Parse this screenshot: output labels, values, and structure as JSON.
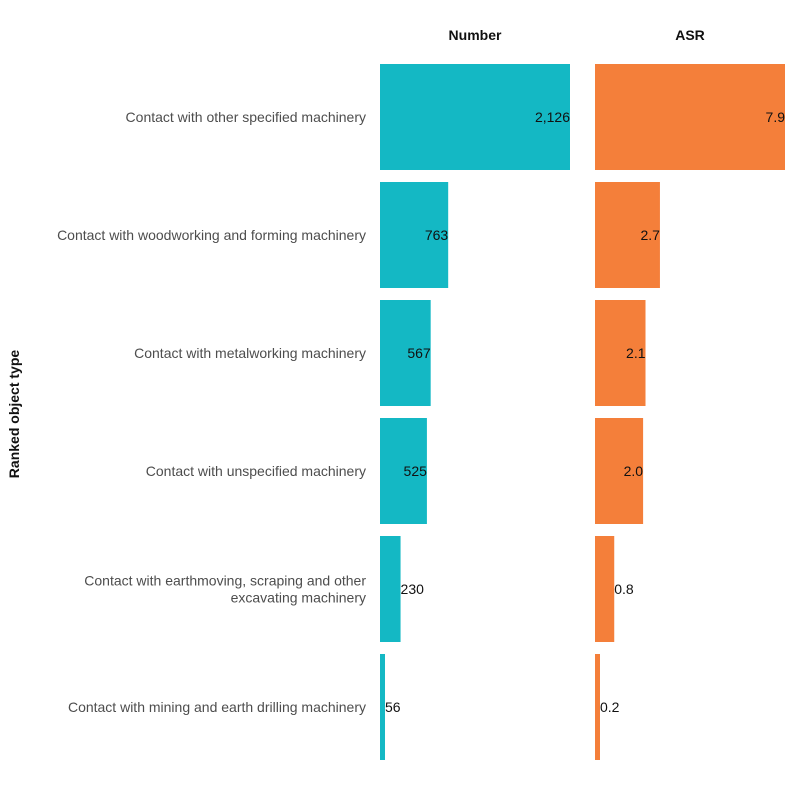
{
  "chart_data": {
    "type": "bar",
    "orientation": "horizontal",
    "ylabel": "Ranked object type",
    "categories": [
      "Contact with other specified machinery",
      "Contact with woodworking and forming machinery",
      "Contact with metalworking machinery",
      "Contact with unspecified machinery",
      [
        "Contact with earthmoving, scraping and other",
        "excavating machinery"
      ],
      "Contact with mining and earth drilling machinery"
    ],
    "panels": [
      {
        "title": "Number",
        "color": "#14b8c4",
        "values": [
          2126,
          763,
          567,
          525,
          230,
          56
        ],
        "value_labels": [
          "2,126",
          "763",
          "567",
          "525",
          "230",
          "56"
        ],
        "xlim": [
          0,
          2126
        ]
      },
      {
        "title": "ASR",
        "color": "#f47f3a",
        "values": [
          7.9,
          2.7,
          2.1,
          2.0,
          0.8,
          0.2
        ],
        "value_labels": [
          "7.9",
          "2.7",
          "2.1",
          "2.0",
          "0.8",
          "0.2"
        ],
        "xlim": [
          0,
          7.9
        ]
      }
    ],
    "grid": false,
    "legend": "none"
  }
}
